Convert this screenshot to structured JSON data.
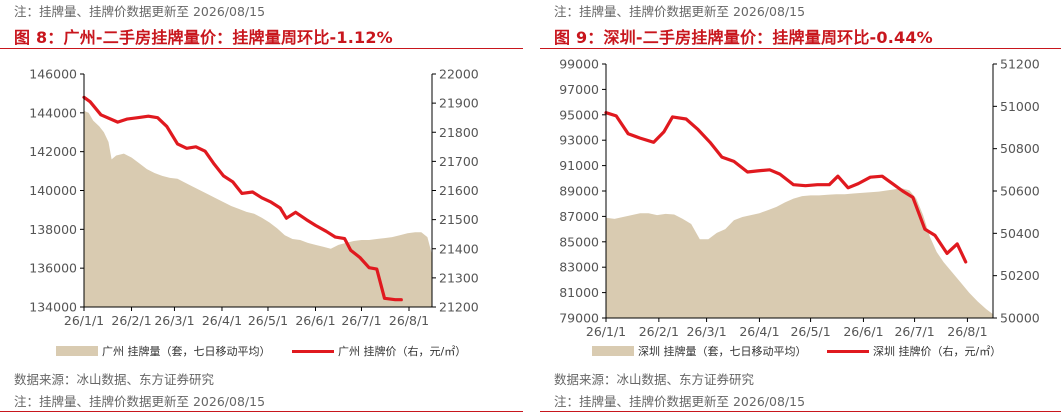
{
  "panels": [
    {
      "note_top": "注：挂牌量、挂牌价数据更新至 2026/08/15",
      "title": "图 8：广州-二手房挂牌量价：挂牌量周环比-1.12%",
      "source": "数据来源：冰山数据、东方证券研究",
      "note_bottom": "注：挂牌量、挂牌价数据更新至 2026/08/15",
      "legend_area": "广州 挂牌量（套，七日移动平均）",
      "legend_line": "广州 挂牌价（右，元/㎡）"
    },
    {
      "note_top": "注：挂牌量、挂牌价数据更新至 2026/08/15",
      "title": "图 9：深圳-二手房挂牌量价：挂牌量周环比-0.44%",
      "source": "数据来源：冰山数据、东方证券研究",
      "note_bottom": "注：挂牌量、挂牌价数据更新至 2026/08/15",
      "legend_area": "深圳 挂牌量（套，七日移动平均）",
      "legend_line": "深圳 挂牌价（右，元/㎡）"
    }
  ],
  "colors": {
    "accent": "#c8161d",
    "area": "#d9cbb1",
    "line": "#e0191f"
  },
  "chart_data": [
    {
      "type": "area+line",
      "x_ticks": [
        "26/1/1",
        "26/2/1",
        "26/3/1",
        "26/4/1",
        "26/5/1",
        "26/6/1",
        "26/7/1",
        "26/8/1"
      ],
      "left_axis": {
        "ylim": [
          134000,
          146000
        ],
        "ticks": [
          134000,
          136000,
          138000,
          140000,
          142000,
          144000,
          146000
        ]
      },
      "right_axis": {
        "ylim": [
          21200,
          22000
        ],
        "ticks": [
          21200,
          21300,
          21400,
          21500,
          21600,
          21700,
          21800,
          21900,
          22000
        ]
      },
      "x_range": [
        0,
        227
      ],
      "area_series": {
        "name": "广州 挂牌量（套，七日移动平均）",
        "points": [
          [
            0,
            144100
          ],
          [
            3,
            144000
          ],
          [
            6,
            143600
          ],
          [
            10,
            143300
          ],
          [
            13,
            143000
          ],
          [
            16,
            142500
          ],
          [
            18,
            141600
          ],
          [
            21,
            141800
          ],
          [
            26,
            141900
          ],
          [
            31,
            141700
          ],
          [
            36,
            141400
          ],
          [
            41,
            141100
          ],
          [
            46,
            140900
          ],
          [
            51,
            140750
          ],
          [
            56,
            140650
          ],
          [
            61,
            140600
          ],
          [
            66,
            140400
          ],
          [
            71,
            140200
          ],
          [
            76,
            140000
          ],
          [
            81,
            139800
          ],
          [
            86,
            139600
          ],
          [
            91,
            139400
          ],
          [
            96,
            139200
          ],
          [
            101,
            139050
          ],
          [
            106,
            138900
          ],
          [
            111,
            138800
          ],
          [
            116,
            138600
          ],
          [
            121,
            138350
          ],
          [
            126,
            138050
          ],
          [
            131,
            137700
          ],
          [
            136,
            137500
          ],
          [
            141,
            137450
          ],
          [
            146,
            137300
          ],
          [
            151,
            137200
          ],
          [
            156,
            137100
          ],
          [
            161,
            137000
          ],
          [
            166,
            137200
          ],
          [
            171,
            137300
          ],
          [
            176,
            137400
          ],
          [
            181,
            137450
          ],
          [
            186,
            137450
          ],
          [
            191,
            137500
          ],
          [
            196,
            137550
          ],
          [
            201,
            137600
          ],
          [
            206,
            137700
          ],
          [
            211,
            137800
          ],
          [
            216,
            137850
          ],
          [
            220,
            137850
          ],
          [
            224,
            137600
          ],
          [
            227,
            136700
          ]
        ]
      },
      "line_series": {
        "name": "广州 挂牌价（右，元/㎡）",
        "points": [
          [
            0,
            21920
          ],
          [
            4,
            21905
          ],
          [
            11,
            21860
          ],
          [
            22,
            21835
          ],
          [
            28,
            21845
          ],
          [
            35,
            21850
          ],
          [
            42,
            21855
          ],
          [
            48,
            21850
          ],
          [
            54,
            21820
          ],
          [
            61,
            21760
          ],
          [
            67,
            21745
          ],
          [
            73,
            21750
          ],
          [
            79,
            21735
          ],
          [
            85,
            21690
          ],
          [
            91,
            21650
          ],
          [
            97,
            21630
          ],
          [
            103,
            21590
          ],
          [
            110,
            21595
          ],
          [
            116,
            21575
          ],
          [
            122,
            21560
          ],
          [
            128,
            21540
          ],
          [
            132,
            21505
          ],
          [
            138,
            21525
          ],
          [
            145,
            21500
          ],
          [
            151,
            21480
          ],
          [
            158,
            21460
          ],
          [
            164,
            21440
          ],
          [
            170,
            21435
          ],
          [
            174,
            21395
          ],
          [
            180,
            21370
          ],
          [
            186,
            21335
          ],
          [
            191,
            21330
          ],
          [
            196,
            21230
          ],
          [
            203,
            21225
          ],
          [
            207,
            21225
          ]
        ]
      }
    },
    {
      "type": "area+line",
      "x_ticks": [
        "26/1/1",
        "26/2/1",
        "26/3/1",
        "26/4/1",
        "26/5/1",
        "26/6/1",
        "26/7/1",
        "26/8/1"
      ],
      "left_axis": {
        "ylim": [
          79000,
          99000
        ],
        "ticks": [
          79000,
          81000,
          83000,
          85000,
          87000,
          89000,
          91000,
          93000,
          95000,
          97000,
          99000
        ]
      },
      "right_axis": {
        "ylim": [
          50000,
          51200
        ],
        "ticks": [
          50000,
          50200,
          50400,
          50600,
          50800,
          51000,
          51200
        ]
      },
      "x_range": [
        0,
        227
      ],
      "area_series": {
        "name": "深圳 挂牌量（套，七日移动平均）",
        "points": [
          [
            0,
            86900
          ],
          [
            5,
            86800
          ],
          [
            10,
            86950
          ],
          [
            15,
            87100
          ],
          [
            20,
            87250
          ],
          [
            25,
            87250
          ],
          [
            30,
            87100
          ],
          [
            35,
            87200
          ],
          [
            40,
            87150
          ],
          [
            45,
            86800
          ],
          [
            50,
            86400
          ],
          [
            55,
            85200
          ],
          [
            60,
            85200
          ],
          [
            65,
            85700
          ],
          [
            70,
            86000
          ],
          [
            75,
            86700
          ],
          [
            80,
            86950
          ],
          [
            85,
            87100
          ],
          [
            90,
            87250
          ],
          [
            95,
            87500
          ],
          [
            100,
            87750
          ],
          [
            105,
            88100
          ],
          [
            110,
            88400
          ],
          [
            115,
            88600
          ],
          [
            120,
            88650
          ],
          [
            125,
            88650
          ],
          [
            130,
            88700
          ],
          [
            135,
            88750
          ],
          [
            140,
            88750
          ],
          [
            145,
            88800
          ],
          [
            150,
            88850
          ],
          [
            155,
            88900
          ],
          [
            160,
            88950
          ],
          [
            165,
            89050
          ],
          [
            170,
            89150
          ],
          [
            174,
            89200
          ],
          [
            178,
            89050
          ],
          [
            182,
            88400
          ],
          [
            186,
            87100
          ],
          [
            190,
            85400
          ],
          [
            194,
            84200
          ],
          [
            198,
            83400
          ],
          [
            203,
            82600
          ],
          [
            208,
            81800
          ],
          [
            213,
            81000
          ],
          [
            218,
            80300
          ],
          [
            223,
            79700
          ],
          [
            227,
            79300
          ]
        ]
      },
      "line_series": {
        "name": "深圳 挂牌价（右，元/㎡）",
        "points": [
          [
            0,
            50970
          ],
          [
            6,
            50955
          ],
          [
            13,
            50870
          ],
          [
            20,
            50850
          ],
          [
            28,
            50830
          ],
          [
            34,
            50880
          ],
          [
            39,
            50950
          ],
          [
            47,
            50940
          ],
          [
            54,
            50890
          ],
          [
            61,
            50830
          ],
          [
            68,
            50760
          ],
          [
            75,
            50740
          ],
          [
            83,
            50690
          ],
          [
            89,
            50695
          ],
          [
            96,
            50700
          ],
          [
            102,
            50680
          ],
          [
            110,
            50630
          ],
          [
            117,
            50625
          ],
          [
            124,
            50630
          ],
          [
            131,
            50630
          ],
          [
            136,
            50670
          ],
          [
            142,
            50615
          ],
          [
            148,
            50635
          ],
          [
            155,
            50665
          ],
          [
            162,
            50670
          ],
          [
            168,
            50635
          ],
          [
            174,
            50600
          ],
          [
            180,
            50570
          ],
          [
            187,
            50420
          ],
          [
            193,
            50390
          ],
          [
            200,
            50305
          ],
          [
            206,
            50350
          ],
          [
            211,
            50265
          ]
        ]
      }
    }
  ]
}
